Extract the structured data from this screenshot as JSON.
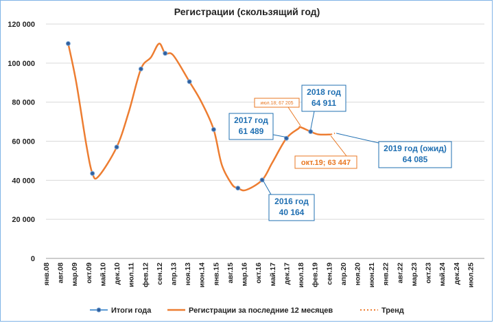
{
  "chart_data": {
    "type": "line",
    "title": "Регистрации (скользящий год)",
    "ylim": [
      0,
      120000
    ],
    "y_ticks": [
      "0",
      "20 000",
      "40 000",
      "60 000",
      "80 000",
      "100 000",
      "120 000"
    ],
    "y_tick_values": [
      0,
      20000,
      40000,
      60000,
      80000,
      100000,
      120000
    ],
    "categories": [
      "янв.08",
      "авг.08",
      "мар.09",
      "окт.09",
      "май.10",
      "дек.10",
      "июл.11",
      "фев.12",
      "сен.12",
      "апр.13",
      "ноя.13",
      "июн.14",
      "янв.15",
      "авг.15",
      "мар.16",
      "окт.16",
      "май.17",
      "дек.17",
      "июл.18",
      "фев.19",
      "сен.19",
      "апр.20",
      "ноя.20",
      "июн.21",
      "янв.22",
      "авг.22",
      "мар.23",
      "окт.23",
      "май.24",
      "дек.24",
      "июл.25"
    ],
    "grid": true,
    "legend_position": "bottom",
    "series": [
      {
        "name": "Итоги года",
        "type": "points",
        "x": [
          "дек.08",
          "дек.09",
          "дек.10",
          "дек.11",
          "дек.12",
          "дек.13",
          "дек.14",
          "дек.15",
          "дек.16",
          "дек.17",
          "дек.18"
        ],
        "values": [
          110000,
          43500,
          57000,
          97000,
          105000,
          90500,
          66000,
          36000,
          40164,
          61489,
          64911
        ],
        "color": "#1f6fb2"
      },
      {
        "name": "Регистрации за последние 12 месяцев",
        "type": "line",
        "x": [
          "дек.08",
          "апр.09",
          "сен.09",
          "дек.09",
          "мар.10",
          "дек.10",
          "июн.11",
          "дек.11",
          "май.12",
          "сен.12",
          "дек.12",
          "апр.13",
          "дек.13",
          "июн.14",
          "дек.14",
          "апр.15",
          "сен.15",
          "дек.15",
          "апр.16",
          "дек.16",
          "май.17",
          "дек.17",
          "июн.18",
          "июл.18",
          "дек.18",
          "апр.19",
          "окт.19"
        ],
        "values": [
          110000,
          90000,
          58000,
          43500,
          42000,
          57000,
          75000,
          97000,
          103000,
          110000,
          105000,
          104000,
          90500,
          80000,
          66000,
          48000,
          38000,
          36000,
          35000,
          40164,
          49000,
          61489,
          66500,
          67205,
          64911,
          63500,
          63447
        ],
        "color": "#ed7d31"
      },
      {
        "name": "Тренд",
        "type": "dotted",
        "x": [
          "окт.19",
          "дек.19"
        ],
        "values": [
          63447,
          64085
        ],
        "color": "#ed7d31"
      }
    ],
    "annotations": [
      {
        "text_lines": [
          "2016 год",
          "40 164"
        ],
        "color": "#1f6fb2"
      },
      {
        "text_lines": [
          "2017 год",
          "61 489"
        ],
        "color": "#1f6fb2"
      },
      {
        "text_lines": [
          "2018 год",
          "64 911"
        ],
        "color": "#1f6fb2"
      },
      {
        "text_lines": [
          "2019 год (ожид)",
          "64 085"
        ],
        "color": "#1f6fb2"
      },
      {
        "text_lines": [
          "июл.18; 67 205"
        ],
        "color": "#ed7d31"
      },
      {
        "text_lines": [
          "окт.19; 63 447"
        ],
        "color": "#ed7d31"
      }
    ]
  }
}
